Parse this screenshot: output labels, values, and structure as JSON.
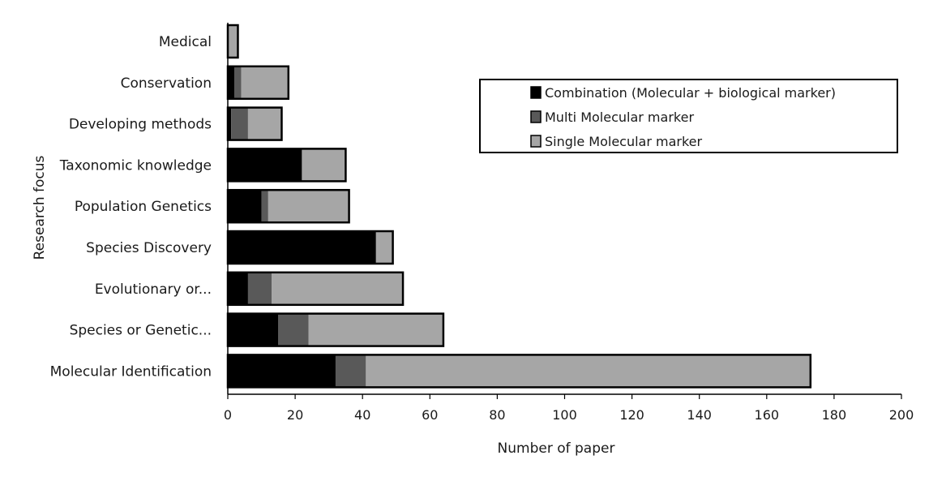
{
  "chart_data": {
    "type": "bar",
    "orientation": "horizontal",
    "stacked": true,
    "categories": [
      "Medical",
      "Conservation",
      "Developing methods",
      "Taxonomic knowledge",
      "Population Genetics",
      "Species Discovery",
      "Evolutionary or...",
      "Species or Genetic...",
      "Molecular Identification"
    ],
    "series": [
      {
        "name": "Combination (Molecular + biological marker)",
        "color": "#000000",
        "values": [
          0,
          2,
          1,
          22,
          10,
          44,
          6,
          15,
          32
        ]
      },
      {
        "name": "Multi Molecular marker",
        "color": "#595959",
        "values": [
          0,
          2,
          5,
          0,
          2,
          0,
          7,
          9,
          9
        ]
      },
      {
        "name": "Single Molecular marker",
        "color": "#a6a6a6",
        "values": [
          3,
          14,
          10,
          13,
          24,
          5,
          39,
          40,
          132
        ]
      }
    ],
    "xlabel": "Number of paper",
    "ylabel": "Research focus",
    "xlim": [
      0,
      200
    ],
    "xticks": [
      "0",
      "20",
      "40",
      "60",
      "80",
      "100",
      "120",
      "140",
      "160",
      "180",
      "200"
    ],
    "grid": false,
    "legend_position": "top-right"
  }
}
